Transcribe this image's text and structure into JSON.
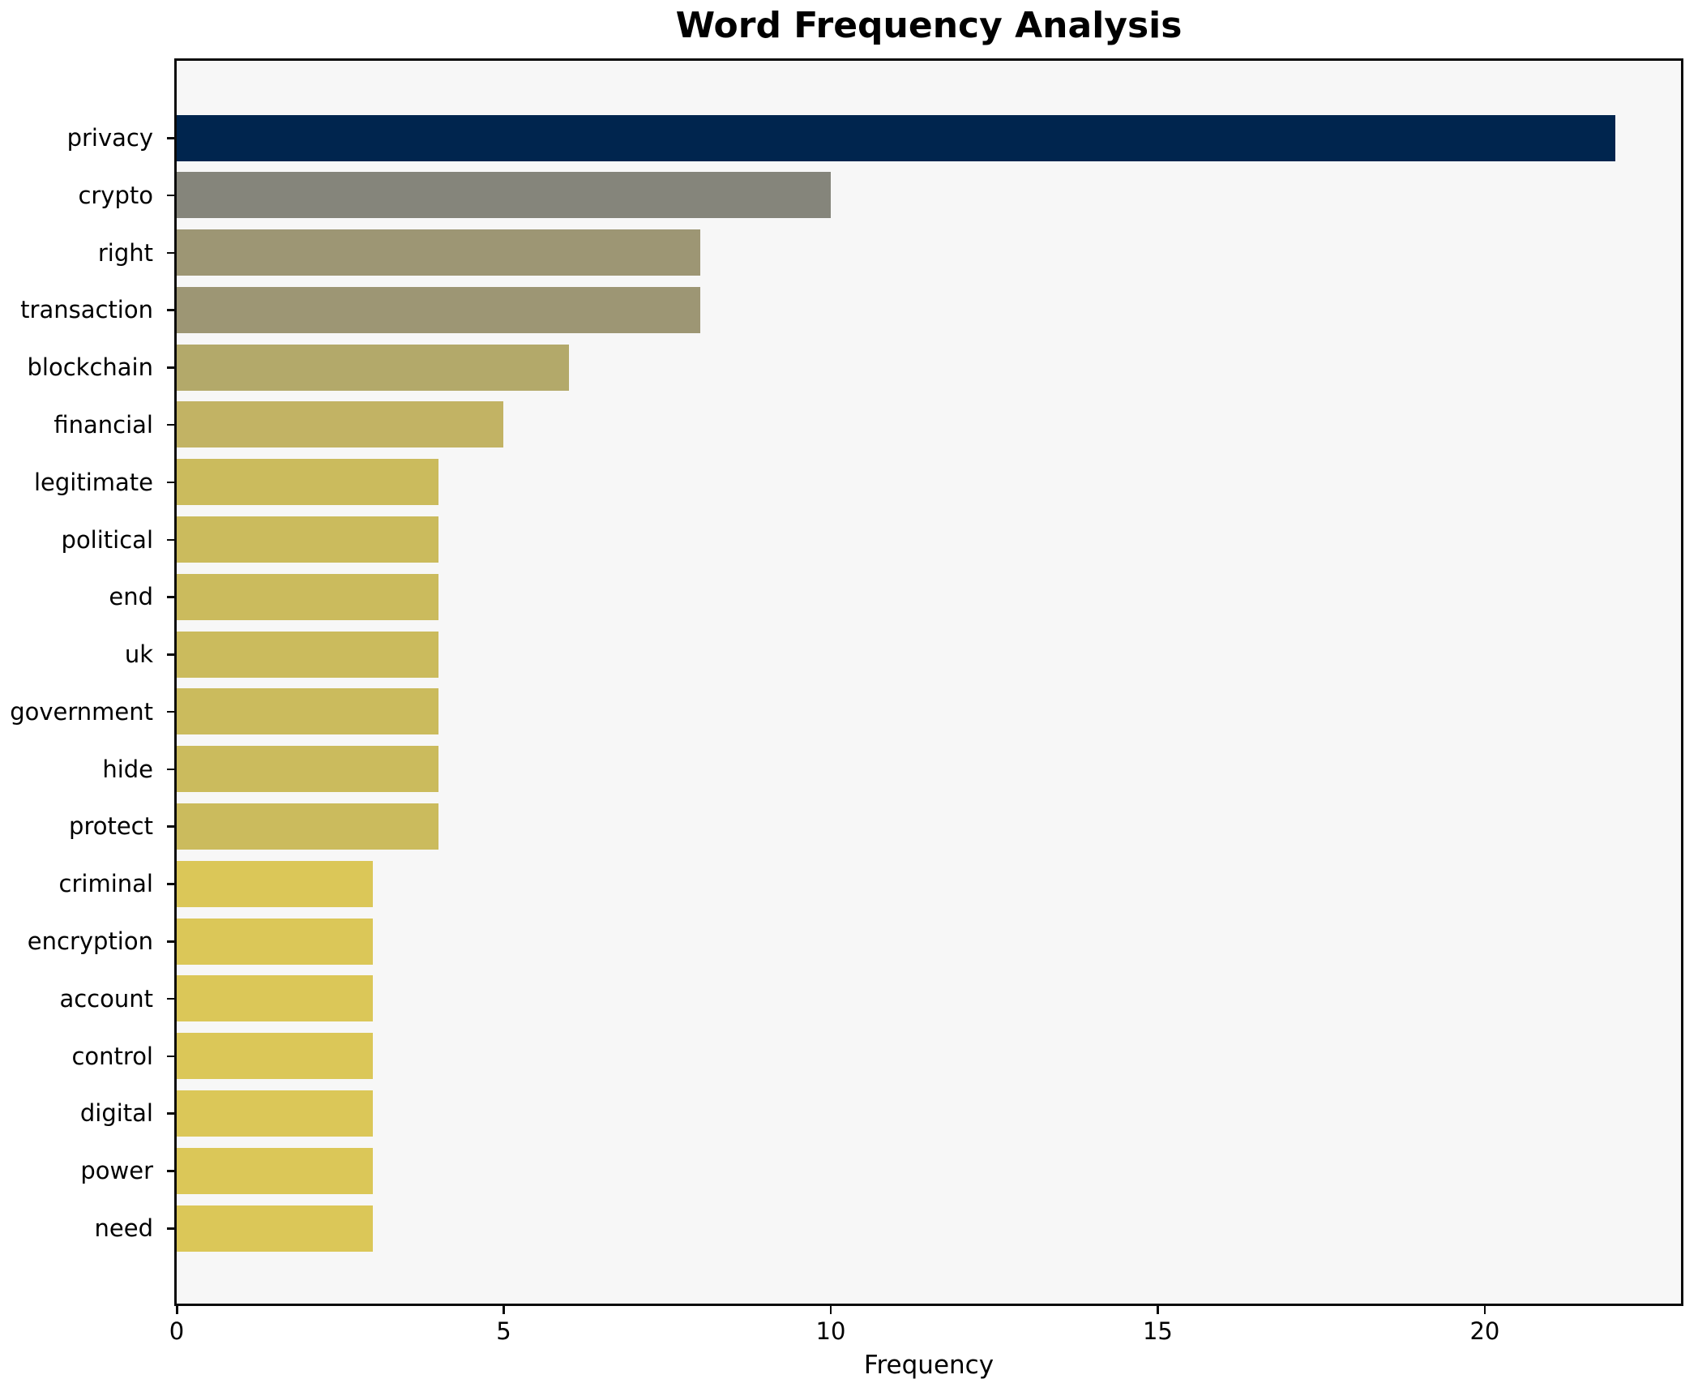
{
  "figure": {
    "title": "Word Frequency Analysis",
    "xlabel": "Frequency",
    "background_color": "#ffffff",
    "plot_background_color": "#f7f7f7",
    "spine_color": "#0a0a0a",
    "text_color": "#000000"
  },
  "chart_data": {
    "type": "bar",
    "orientation": "horizontal",
    "title": "Word Frequency Analysis",
    "xlabel": "Frequency",
    "ylabel": "",
    "categories": [
      "privacy",
      "crypto",
      "right",
      "transaction",
      "blockchain",
      "financial",
      "legitimate",
      "political",
      "end",
      "uk",
      "government",
      "hide",
      "protect",
      "criminal",
      "encryption",
      "account",
      "control",
      "digital",
      "power",
      "need"
    ],
    "values": [
      22,
      10,
      8,
      8,
      6,
      5,
      4,
      4,
      4,
      4,
      4,
      4,
      4,
      3,
      3,
      3,
      3,
      3,
      3,
      3
    ],
    "bar_colors": [
      "#00254e",
      "#85857b",
      "#9d9674",
      "#9d9674",
      "#b3a96a",
      "#c2b364",
      "#cbbb5d",
      "#cbbb5d",
      "#cbbb5d",
      "#cbbb5d",
      "#cbbb5d",
      "#cbbb5d",
      "#cbbb5d",
      "#dbc758",
      "#dbc758",
      "#dbc758",
      "#dbc758",
      "#dbc758",
      "#dbc758",
      "#dbc758"
    ],
    "xlim": [
      0,
      23
    ],
    "xticks": [
      0,
      5,
      10,
      15,
      20
    ],
    "grid": false,
    "legend_position": "none",
    "colormap": "cividis"
  }
}
